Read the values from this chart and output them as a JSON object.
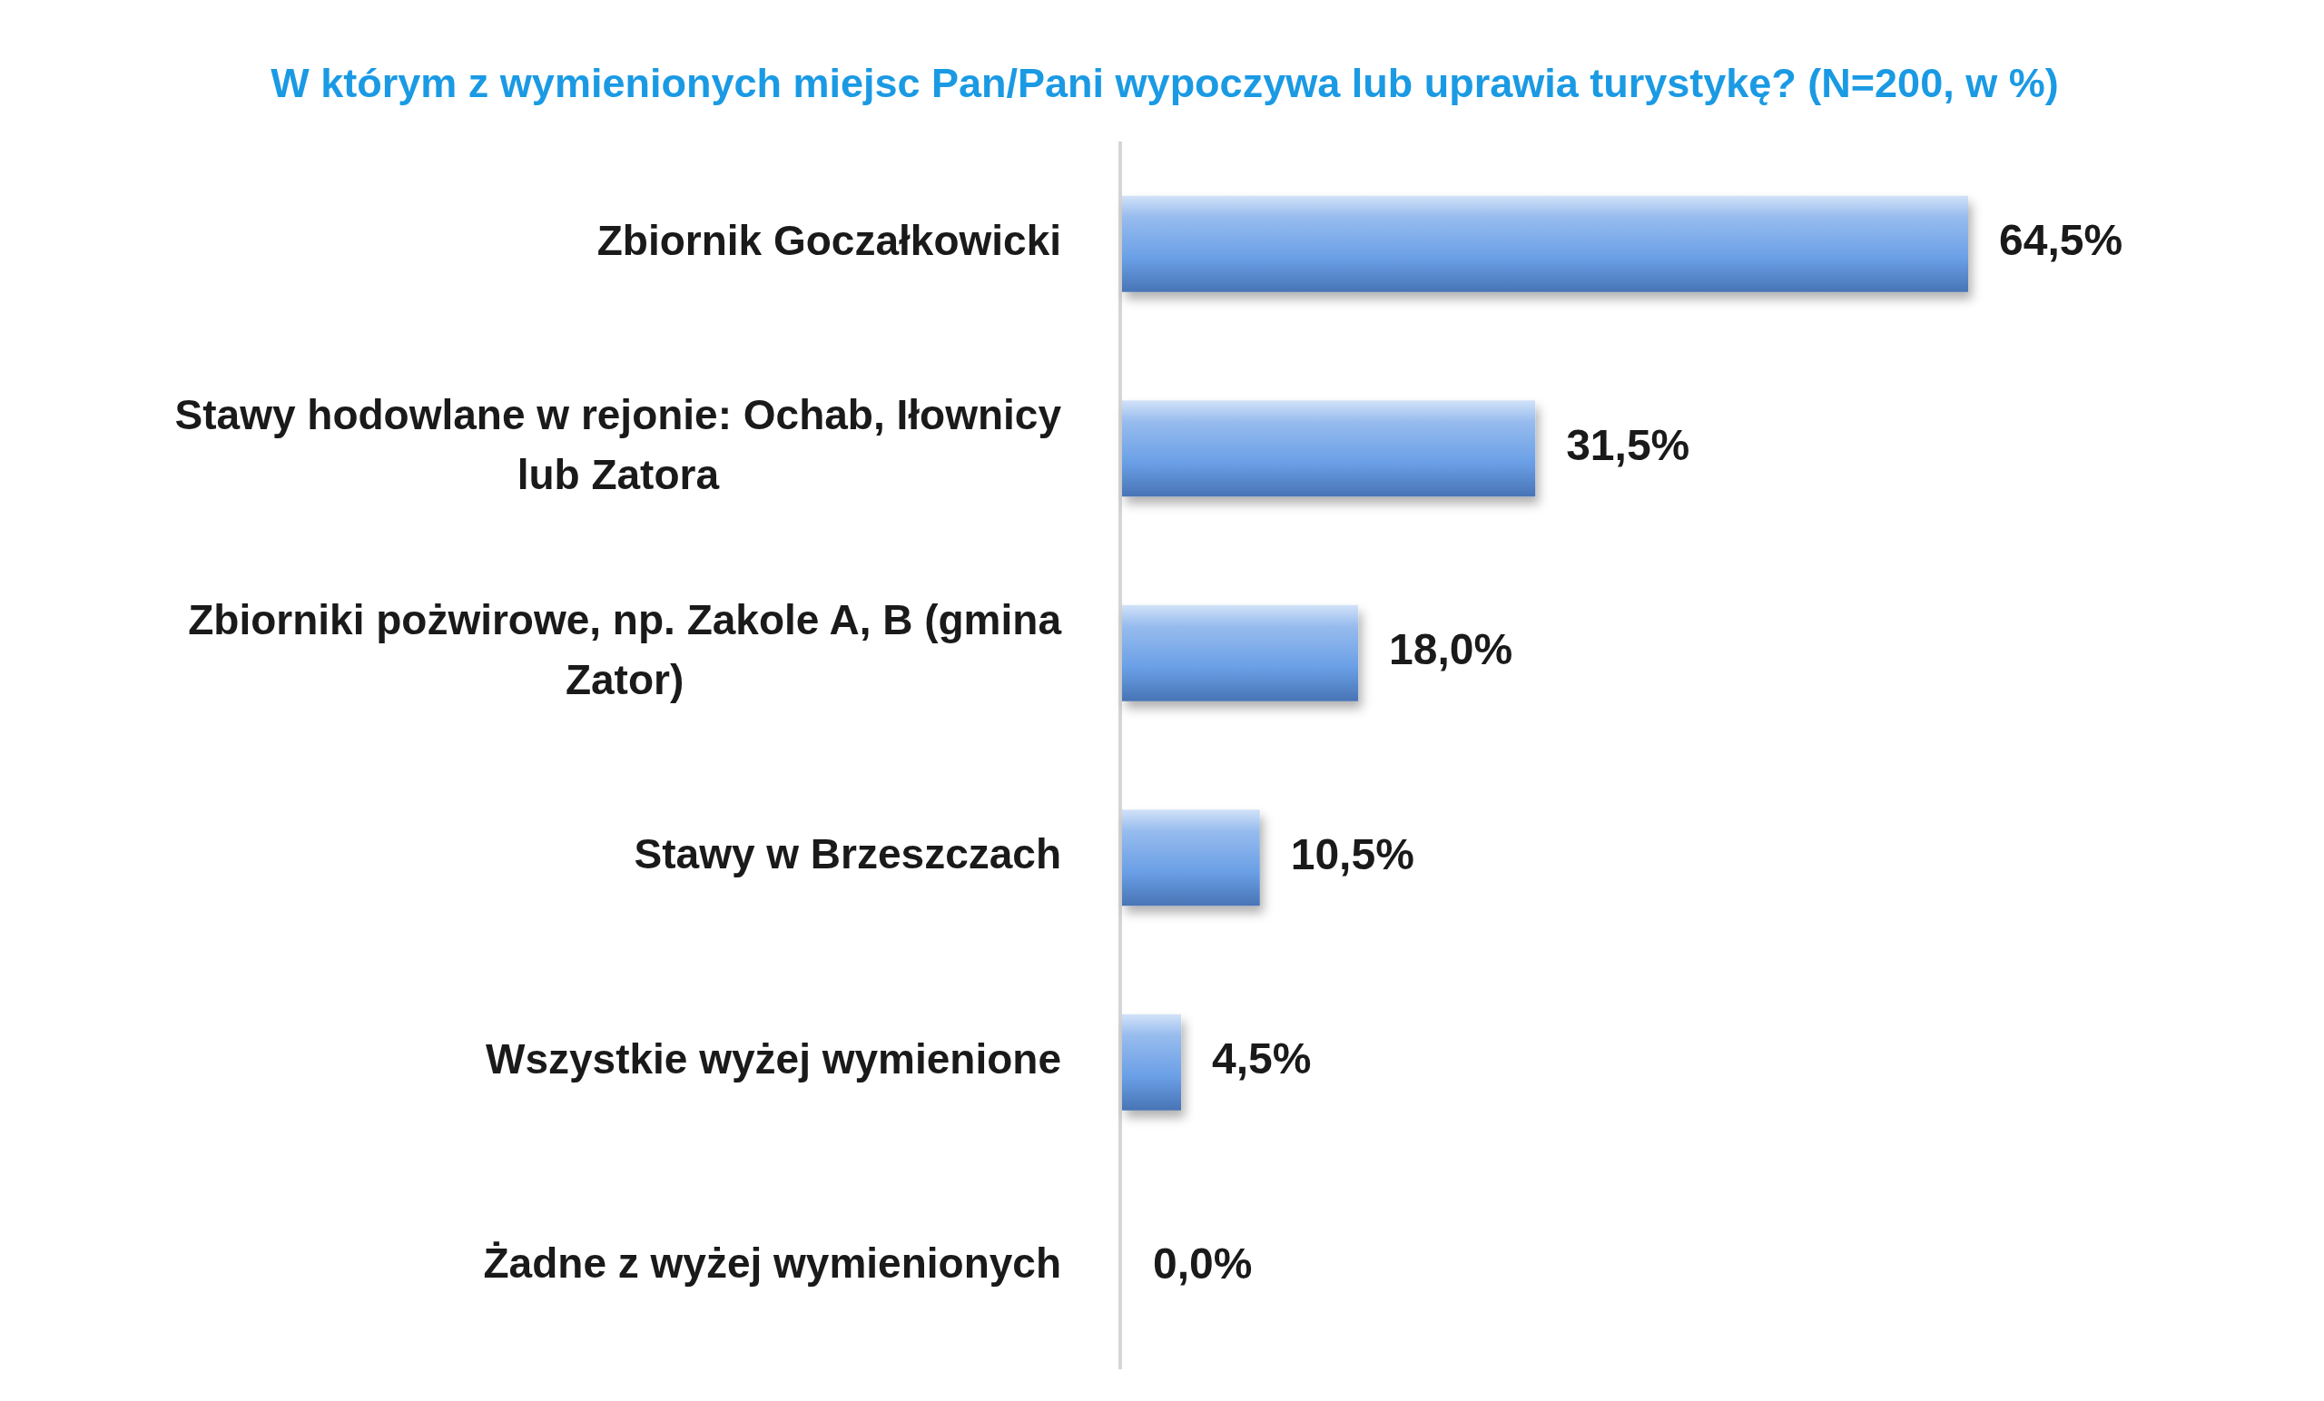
{
  "chart_data": {
    "type": "bar",
    "orientation": "horizontal",
    "title": "W którym z wymienionych miejsc Pan/Pani wypoczywa lub uprawia turystykę? (N=200, w %)",
    "categories": [
      "Zbiornik Goczałkowicki",
      "Stawy hodowlane w rejonie: Ochab, Iłownicy lub Zatora",
      "Zbiorniki pożwirowe, np. Zakole A, B (gmina Zator)",
      "Stawy w Brzeszczach",
      "Wszystkie wyżej wymienione",
      "Żadne z wyżej wymienionych"
    ],
    "values": [
      64.5,
      31.5,
      18.0,
      10.5,
      4.5,
      0.0
    ],
    "color": "#6a9fe6",
    "value_labels": [
      "64,5%",
      "31,5%",
      "18,0%",
      "10,5%",
      "4,5%",
      "0,0%"
    ],
    "tick_labels": "y"
  }
}
